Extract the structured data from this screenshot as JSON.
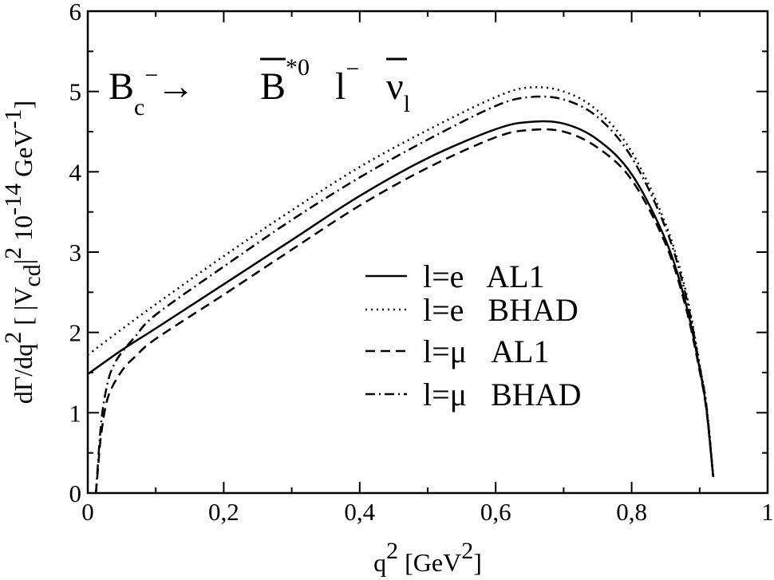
{
  "chart_data": {
    "type": "line",
    "title": {
      "lhs_main": "B",
      "lhs_sub": "c",
      "lhs_sup": "−",
      "arrow": "→",
      "meson": "B",
      "meson_sup": "*0",
      "lepton": "l",
      "lepton_sup": "−",
      "neutrino": "ν",
      "neutrino_sub": "l"
    },
    "xlabel": {
      "main": "q",
      "sup": "2",
      "unit_open": " [GeV",
      "unit_sup": "2",
      "unit_close": "]"
    },
    "ylabel": {
      "part1": "dΓ/dq",
      "sup1": "2",
      "part2": "  [ |V",
      "sub2": "cd",
      "part3": "|",
      "sup3": "2",
      "part4": " 10",
      "sup4": "-14",
      "part5": " GeV",
      "sup5": "-1",
      "part6": "]"
    },
    "xlim": [
      0,
      1
    ],
    "ylim": [
      0,
      6
    ],
    "x_ticks": [
      {
        "value": 0,
        "label": "0"
      },
      {
        "value": 0.2,
        "label": "0,2"
      },
      {
        "value": 0.4,
        "label": "0,4"
      },
      {
        "value": 0.6,
        "label": "0,6"
      },
      {
        "value": 0.8,
        "label": "0,8"
      },
      {
        "value": 1,
        "label": "1"
      }
    ],
    "y_ticks": [
      {
        "value": 0,
        "label": "0"
      },
      {
        "value": 1,
        "label": "1"
      },
      {
        "value": 2,
        "label": "2"
      },
      {
        "value": 3,
        "label": "3"
      },
      {
        "value": 4,
        "label": "4"
      },
      {
        "value": 5,
        "label": "5"
      },
      {
        "value": 6,
        "label": "6"
      }
    ],
    "grid": false,
    "legend_position": "center-right",
    "series": [
      {
        "name": "l=e   AL1",
        "dash": "solid",
        "x": [
          0.0,
          0.05,
          0.1,
          0.2,
          0.3,
          0.4,
          0.5,
          0.6,
          0.65,
          0.7,
          0.75,
          0.8,
          0.85,
          0.88,
          0.9,
          0.91,
          0.92
        ],
        "y": [
          1.48,
          1.78,
          2.05,
          2.6,
          3.15,
          3.7,
          4.17,
          4.53,
          4.62,
          4.6,
          4.4,
          3.97,
          3.15,
          2.35,
          1.55,
          1.05,
          0.2
        ]
      },
      {
        "name": "l=e   BHAD",
        "dash": "dotted",
        "x": [
          0.0,
          0.05,
          0.1,
          0.2,
          0.3,
          0.4,
          0.5,
          0.6,
          0.65,
          0.7,
          0.75,
          0.8,
          0.85,
          0.88,
          0.9,
          0.91,
          0.92
        ],
        "y": [
          1.72,
          2.04,
          2.35,
          2.95,
          3.52,
          4.06,
          4.52,
          4.93,
          5.05,
          5.0,
          4.76,
          4.25,
          3.35,
          2.5,
          1.6,
          1.1,
          0.22
        ]
      },
      {
        "name": "l=μ   AL1",
        "dash": "dashed",
        "x": [
          0.012,
          0.015,
          0.02,
          0.03,
          0.05,
          0.07,
          0.1,
          0.2,
          0.3,
          0.4,
          0.5,
          0.6,
          0.65,
          0.7,
          0.75,
          0.8,
          0.85,
          0.88,
          0.9,
          0.91,
          0.92
        ],
        "y": [
          0.0,
          0.3,
          0.75,
          1.2,
          1.52,
          1.7,
          1.92,
          2.47,
          3.03,
          3.58,
          4.05,
          4.43,
          4.52,
          4.5,
          4.3,
          3.9,
          3.1,
          2.3,
          1.52,
          1.03,
          0.2
        ]
      },
      {
        "name": "l=μ   BHAD",
        "dash": "dashdot",
        "x": [
          0.012,
          0.02,
          0.03,
          0.04,
          0.05,
          0.07,
          0.1,
          0.2,
          0.3,
          0.4,
          0.5,
          0.6,
          0.65,
          0.7,
          0.75,
          0.8,
          0.85,
          0.88,
          0.9,
          0.91,
          0.92
        ],
        "y": [
          0.0,
          0.9,
          1.4,
          1.62,
          1.75,
          1.95,
          2.22,
          2.82,
          3.4,
          3.93,
          4.4,
          4.82,
          4.93,
          4.9,
          4.68,
          4.18,
          3.3,
          2.45,
          1.58,
          1.08,
          0.2
        ]
      }
    ]
  }
}
